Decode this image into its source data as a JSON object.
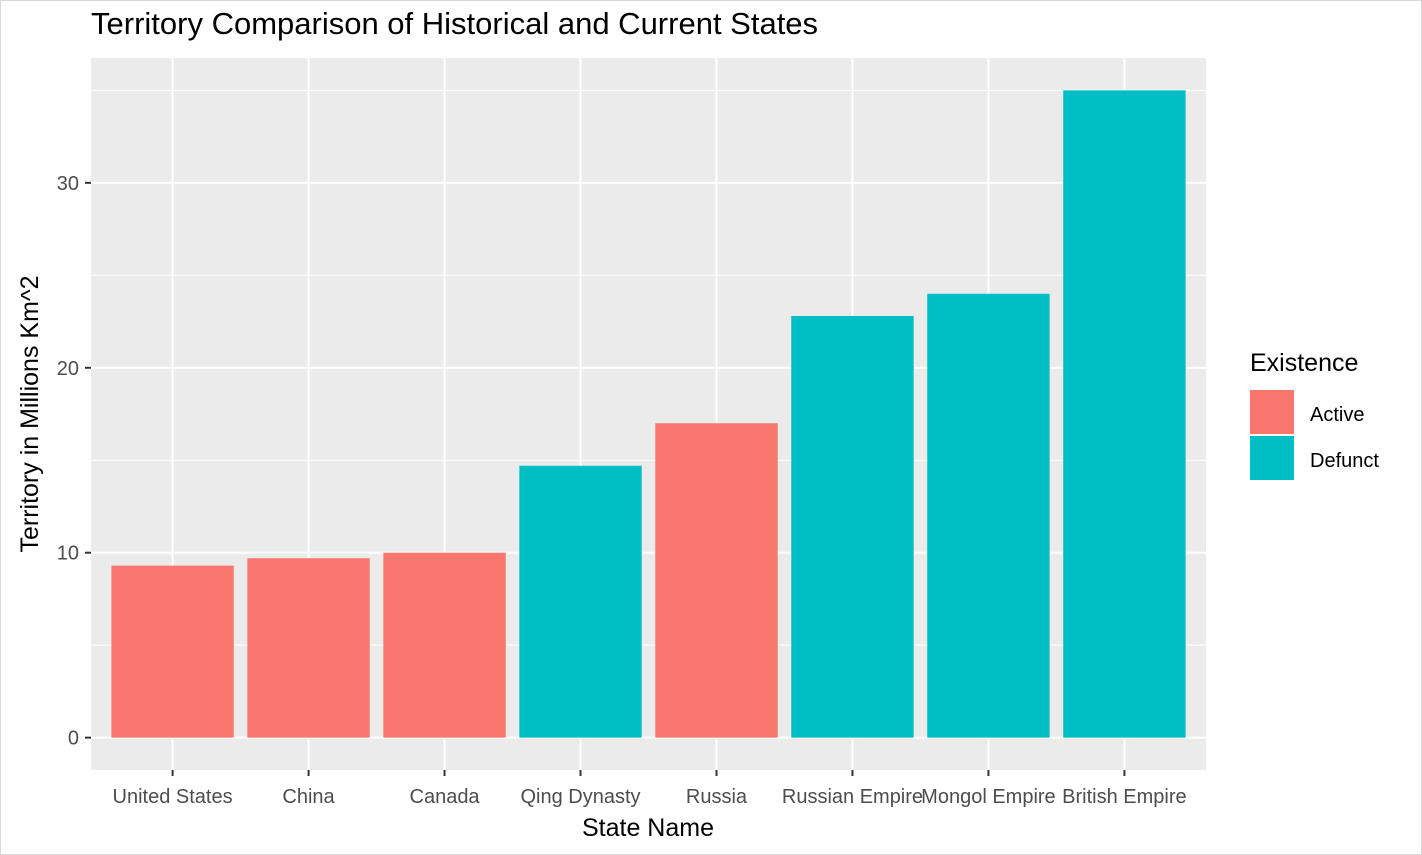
{
  "chart_data": {
    "type": "bar",
    "title": "Territory Comparison of Historical and Current States",
    "xlabel": "State Name",
    "ylabel": "Territory in Millions Km^2",
    "categories": [
      "United States",
      "China",
      "Canada",
      "Qing Dynasty",
      "Russia",
      "Russian Empire",
      "Mongol Empire",
      "British Empire"
    ],
    "values": [
      9.3,
      9.7,
      10.0,
      14.7,
      17.0,
      22.8,
      24.0,
      35.0
    ],
    "groups": [
      "Active",
      "Active",
      "Active",
      "Defunct",
      "Active",
      "Defunct",
      "Defunct",
      "Defunct"
    ],
    "ylim": [
      -1.75,
      36.75
    ],
    "yticks": [
      0,
      10,
      20,
      30
    ],
    "grid": true,
    "legend": {
      "title": "Existence",
      "position": "right",
      "entries": [
        {
          "label": "Active",
          "color": "#F8766D"
        },
        {
          "label": "Defunct",
          "color": "#00BFC4"
        }
      ]
    }
  },
  "colors": {
    "panel_background": "#EBEBEB",
    "grid": "#FFFFFF",
    "active": "#F8766D",
    "defunct": "#00BFC4"
  }
}
